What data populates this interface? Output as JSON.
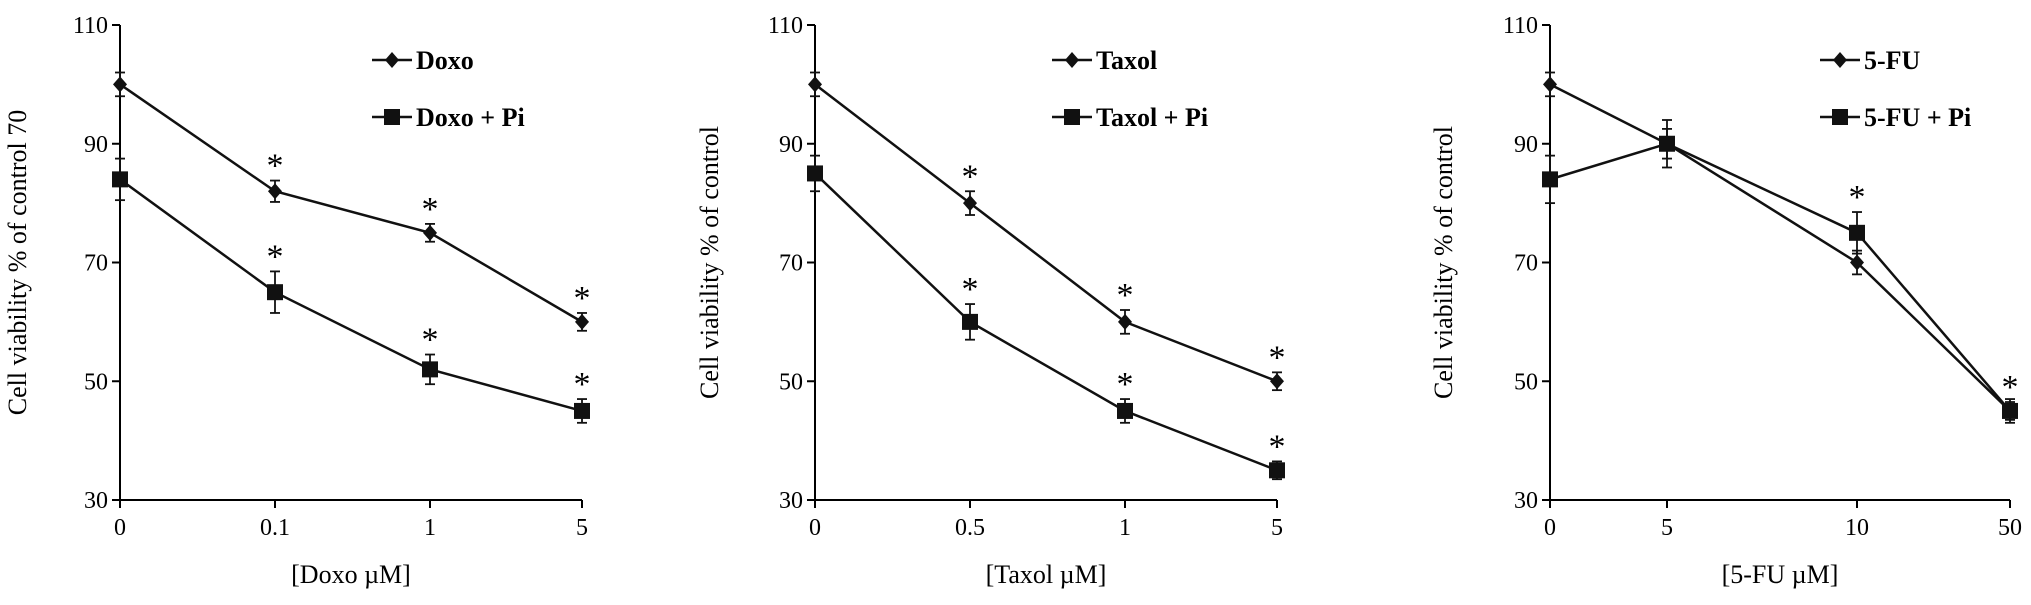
{
  "chart_data": [
    {
      "type": "line",
      "categories": [
        "0",
        "0.1",
        "1",
        "5"
      ],
      "xlabel": "[Doxo µM]",
      "ylabel": "Cell  viability  % of control 70",
      "ylim": [
        30,
        110
      ],
      "yticks": [
        "30",
        "50",
        "70",
        "90",
        "110"
      ],
      "legend_placement": "top-right",
      "series": [
        {
          "name": "Doxo",
          "marker": "diamond",
          "values": [
            100,
            82,
            75,
            60
          ],
          "errors": [
            2,
            1.8,
            1.5,
            1.5
          ],
          "significant": [
            false,
            true,
            true,
            true
          ]
        },
        {
          "name": "Doxo + Pi",
          "marker": "square",
          "values": [
            84,
            65,
            52,
            45
          ],
          "errors": [
            3.5,
            3.5,
            2.5,
            2
          ],
          "significant": [
            false,
            true,
            true,
            true
          ]
        }
      ],
      "significance_mark": "*"
    },
    {
      "type": "line",
      "categories": [
        "0",
        "0.5",
        "1",
        "5"
      ],
      "xlabel": "[Taxol µM]",
      "ylabel": "Cell  viability  % of control",
      "ylim": [
        30,
        110
      ],
      "yticks": [
        "30",
        "50",
        "70",
        "90",
        "110"
      ],
      "legend_placement": "top-right",
      "series": [
        {
          "name": "Taxol",
          "marker": "diamond",
          "values": [
            100,
            80,
            60,
            50
          ],
          "errors": [
            2,
            2,
            2,
            1.5
          ],
          "significant": [
            false,
            true,
            true,
            true
          ]
        },
        {
          "name": "Taxol + Pi",
          "marker": "square",
          "values": [
            85,
            60,
            45,
            35
          ],
          "errors": [
            3,
            3,
            2,
            1.5
          ],
          "significant": [
            false,
            true,
            true,
            true
          ]
        }
      ],
      "significance_mark": "*"
    },
    {
      "type": "line",
      "categories": [
        "0",
        "5",
        "10",
        "50"
      ],
      "xlabel": "[5-FU µM]",
      "ylabel": "Cell  viability  % of control",
      "ylim": [
        30,
        110
      ],
      "yticks": [
        "30",
        "50",
        "70",
        "90",
        "110"
      ],
      "legend_placement": "top-right",
      "series": [
        {
          "name": "5-FU",
          "marker": "diamond",
          "values": [
            100,
            90,
            70,
            45
          ],
          "errors": [
            2,
            2.5,
            2,
            1.5
          ],
          "significant": [
            false,
            false,
            false,
            true
          ]
        },
        {
          "name": "5-FU + Pi",
          "marker": "square",
          "values": [
            84,
            90,
            75,
            45
          ],
          "errors": [
            4,
            4,
            3.5,
            2
          ],
          "significant": [
            false,
            false,
            true,
            false
          ]
        }
      ],
      "significance_mark": "*"
    }
  ]
}
